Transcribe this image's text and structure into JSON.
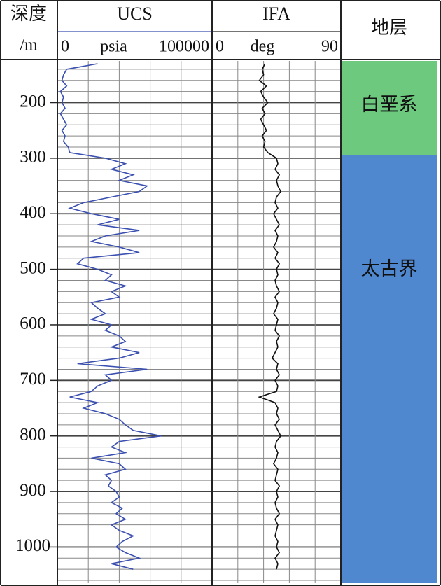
{
  "chart_data": {
    "type": "well-log",
    "depth_header": "深度",
    "depth_unit": "/m",
    "ylim": [
      125,
      1065
    ],
    "yticks": [
      200,
      300,
      400,
      500,
      600,
      700,
      800,
      900,
      1000
    ],
    "minor_yticks": [
      140,
      160,
      180,
      220,
      240,
      260,
      280,
      320,
      340,
      360,
      380,
      420,
      440,
      460,
      480,
      520,
      540,
      560,
      580,
      620,
      640,
      660,
      680,
      720,
      740,
      760,
      780,
      820,
      840,
      860,
      880,
      920,
      940,
      960,
      980,
      1020,
      1040,
      1060
    ],
    "depths": [
      130,
      140,
      150,
      160,
      170,
      180,
      190,
      200,
      210,
      220,
      230,
      240,
      250,
      260,
      270,
      280,
      290,
      300,
      310,
      320,
      330,
      340,
      350,
      360,
      370,
      380,
      390,
      400,
      410,
      420,
      430,
      440,
      450,
      460,
      470,
      480,
      490,
      500,
      510,
      520,
      530,
      540,
      550,
      560,
      570,
      580,
      590,
      600,
      610,
      620,
      630,
      640,
      650,
      660,
      670,
      680,
      690,
      700,
      710,
      720,
      730,
      740,
      750,
      760,
      770,
      780,
      790,
      800,
      810,
      820,
      830,
      840,
      850,
      860,
      870,
      880,
      890,
      900,
      910,
      920,
      930,
      940,
      950,
      960,
      970,
      980,
      990,
      1000,
      1010,
      1020,
      1030,
      1040
    ],
    "tracks": [
      {
        "name": "UCS",
        "unit": "psia",
        "color": "#3a4fb0",
        "xlim": [
          0,
          100000
        ],
        "xticks": [
          0,
          100000
        ],
        "minor_xticks": [
          20000,
          40000,
          60000,
          80000
        ],
        "values": [
          26000,
          6000,
          4000,
          3000,
          6000,
          2000,
          4000,
          3000,
          5000,
          2000,
          4000,
          6000,
          3000,
          5000,
          4000,
          7000,
          8000,
          31000,
          44000,
          35000,
          49000,
          40000,
          58000,
          53000,
          35000,
          17000,
          8000,
          22000,
          40000,
          26000,
          53000,
          31000,
          22000,
          40000,
          53000,
          17000,
          13000,
          26000,
          35000,
          31000,
          44000,
          35000,
          40000,
          22000,
          26000,
          31000,
          22000,
          35000,
          31000,
          40000,
          44000,
          35000,
          53000,
          40000,
          13000,
          58000,
          31000,
          35000,
          26000,
          22000,
          8000,
          26000,
          17000,
          31000,
          40000,
          44000,
          49000,
          67000,
          40000,
          35000,
          44000,
          22000,
          40000,
          44000,
          31000,
          35000,
          33000,
          38000,
          40000,
          35000,
          42000,
          38000,
          44000,
          35000,
          40000,
          49000,
          42000,
          38000,
          44000,
          53000,
          35000,
          49000
        ]
      },
      {
        "name": "IFA",
        "unit": "deg",
        "color": "#111111",
        "xlim": [
          0,
          90
        ],
        "xticks": [
          0,
          90
        ],
        "minor_xticks": [
          18,
          36,
          54,
          72
        ],
        "values": [
          37,
          35,
          36,
          33,
          38,
          34,
          36,
          39,
          35,
          37,
          34,
          36,
          38,
          35,
          37,
          36,
          39,
          45,
          46,
          44,
          47,
          45,
          46,
          48,
          45,
          44,
          46,
          43,
          45,
          47,
          44,
          46,
          45,
          43,
          46,
          44,
          47,
          45,
          46,
          44,
          45,
          47,
          44,
          46,
          45,
          43,
          46,
          45,
          44,
          47,
          45,
          46,
          44,
          42,
          46,
          45,
          47,
          44,
          46,
          45,
          33,
          44,
          46,
          45,
          47,
          44,
          46,
          48,
          45,
          44,
          46,
          45,
          43,
          46,
          45,
          44,
          47,
          45,
          46,
          44,
          45,
          47,
          44,
          46,
          45,
          44,
          46,
          45,
          47,
          44,
          46,
          45
        ]
      }
    ],
    "formation_header": "地层",
    "zones": [
      {
        "name": "白垩系",
        "top": 125,
        "base": 295,
        "color": "#6dc97e"
      },
      {
        "name": "太古界",
        "top": 295,
        "base": 1065,
        "color": "#5088d0"
      }
    ]
  }
}
